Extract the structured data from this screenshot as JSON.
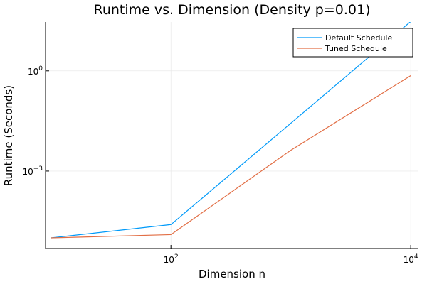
{
  "chart_data": {
    "type": "line",
    "title": "Runtime vs. Dimension (Density p=0.01)",
    "xlabel": "Dimension n",
    "ylabel": "Runtime (Seconds)",
    "xscale": "log",
    "yscale": "log",
    "xlim": [
      9.0,
      11600
    ],
    "ylim": [
      4.8e-06,
      29
    ],
    "xticks": [
      {
        "value": 100,
        "base": "10",
        "exp": "2"
      },
      {
        "value": 10000,
        "base": "10",
        "exp": "4"
      }
    ],
    "yticks": [
      {
        "value": 0.001,
        "base": "10",
        "exp": "−3"
      },
      {
        "value": 1,
        "base": "10",
        "exp": "0"
      }
    ],
    "grid": true,
    "legend_position": "top-right",
    "series": [
      {
        "name": "Default Schedule",
        "color": "#009af9",
        "x": [
          10,
          100,
          1000,
          10000
        ],
        "y": [
          1e-05,
          2.5e-05,
          0.027,
          30
        ]
      },
      {
        "name": "Tuned Schedule",
        "color": "#e26f46",
        "x": [
          10,
          100,
          1000,
          10000
        ],
        "y": [
          1e-05,
          1.25e-05,
          0.0042,
          0.72
        ]
      }
    ]
  }
}
